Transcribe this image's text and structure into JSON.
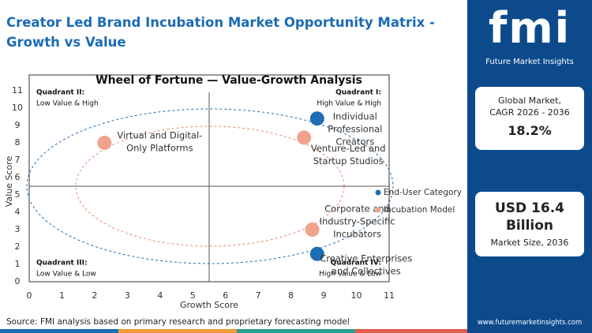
{
  "header": {
    "title": "Creator Led Brand Incubation Market Opportunity Matrix - Growth vs Value"
  },
  "chart_data": {
    "type": "scatter",
    "title": "Wheel of Fortune — Value-Growth Analysis",
    "x_label": "Growth Score",
    "y_label": "Value Score",
    "xlim": [
      0,
      11
    ],
    "ylim": [
      0,
      11
    ],
    "xticks": [
      0,
      1,
      2,
      3,
      4,
      5,
      6,
      7,
      8,
      9,
      10,
      11
    ],
    "yticks": [
      0,
      1,
      2,
      3,
      4,
      5,
      6,
      7,
      8,
      9,
      10,
      11
    ],
    "quadrant_lines": {
      "x": 5.5,
      "y": 5.5
    },
    "quadrants": [
      {
        "name": "Quadrant II:",
        "desc": "Low Value & High"
      },
      {
        "name": "Quadrant I:",
        "desc": "High Value & High"
      },
      {
        "name": "Quadrant III:",
        "desc": "Low Value & Low"
      },
      {
        "name": "Quadrant IV:",
        "desc": "High Value & Low"
      }
    ],
    "series": [
      {
        "name": "End-User Category",
        "color": "#1f6db3",
        "x": [
          8.8,
          8.8
        ],
        "values": [
          9.4,
          1.6
        ],
        "labels": [
          [
            "Individual",
            "Professional",
            "Creators"
          ],
          [
            "Creative Enterprises",
            "and Collectives"
          ]
        ]
      },
      {
        "name": "Incubation Model",
        "color": "#f0a28c",
        "x": [
          8.4,
          2.3,
          8.65
        ],
        "values": [
          8.3,
          8.0,
          3.0
        ],
        "labels": [
          [
            "Venture-Led and",
            "Startup Studios"
          ],
          [
            "Virtual and Digital-",
            "Only Platforms"
          ],
          [
            "Corporate and",
            "Industry-Specific",
            "Incubators"
          ]
        ]
      }
    ]
  },
  "sidebar": {
    "logo": "fmi",
    "brand": "Future Market Insights",
    "stat1": {
      "label": [
        "Global Market,",
        "CAGR 2026 - 2036"
      ],
      "value": "18.2%"
    },
    "stat2": {
      "value": [
        "USD 16.4",
        "Billion"
      ],
      "label": "Market Size, 2036"
    },
    "website": "www.futuremarketinsights.com"
  },
  "source": "Source: FMI analysis based on primary research and proprietary forecasting model"
}
